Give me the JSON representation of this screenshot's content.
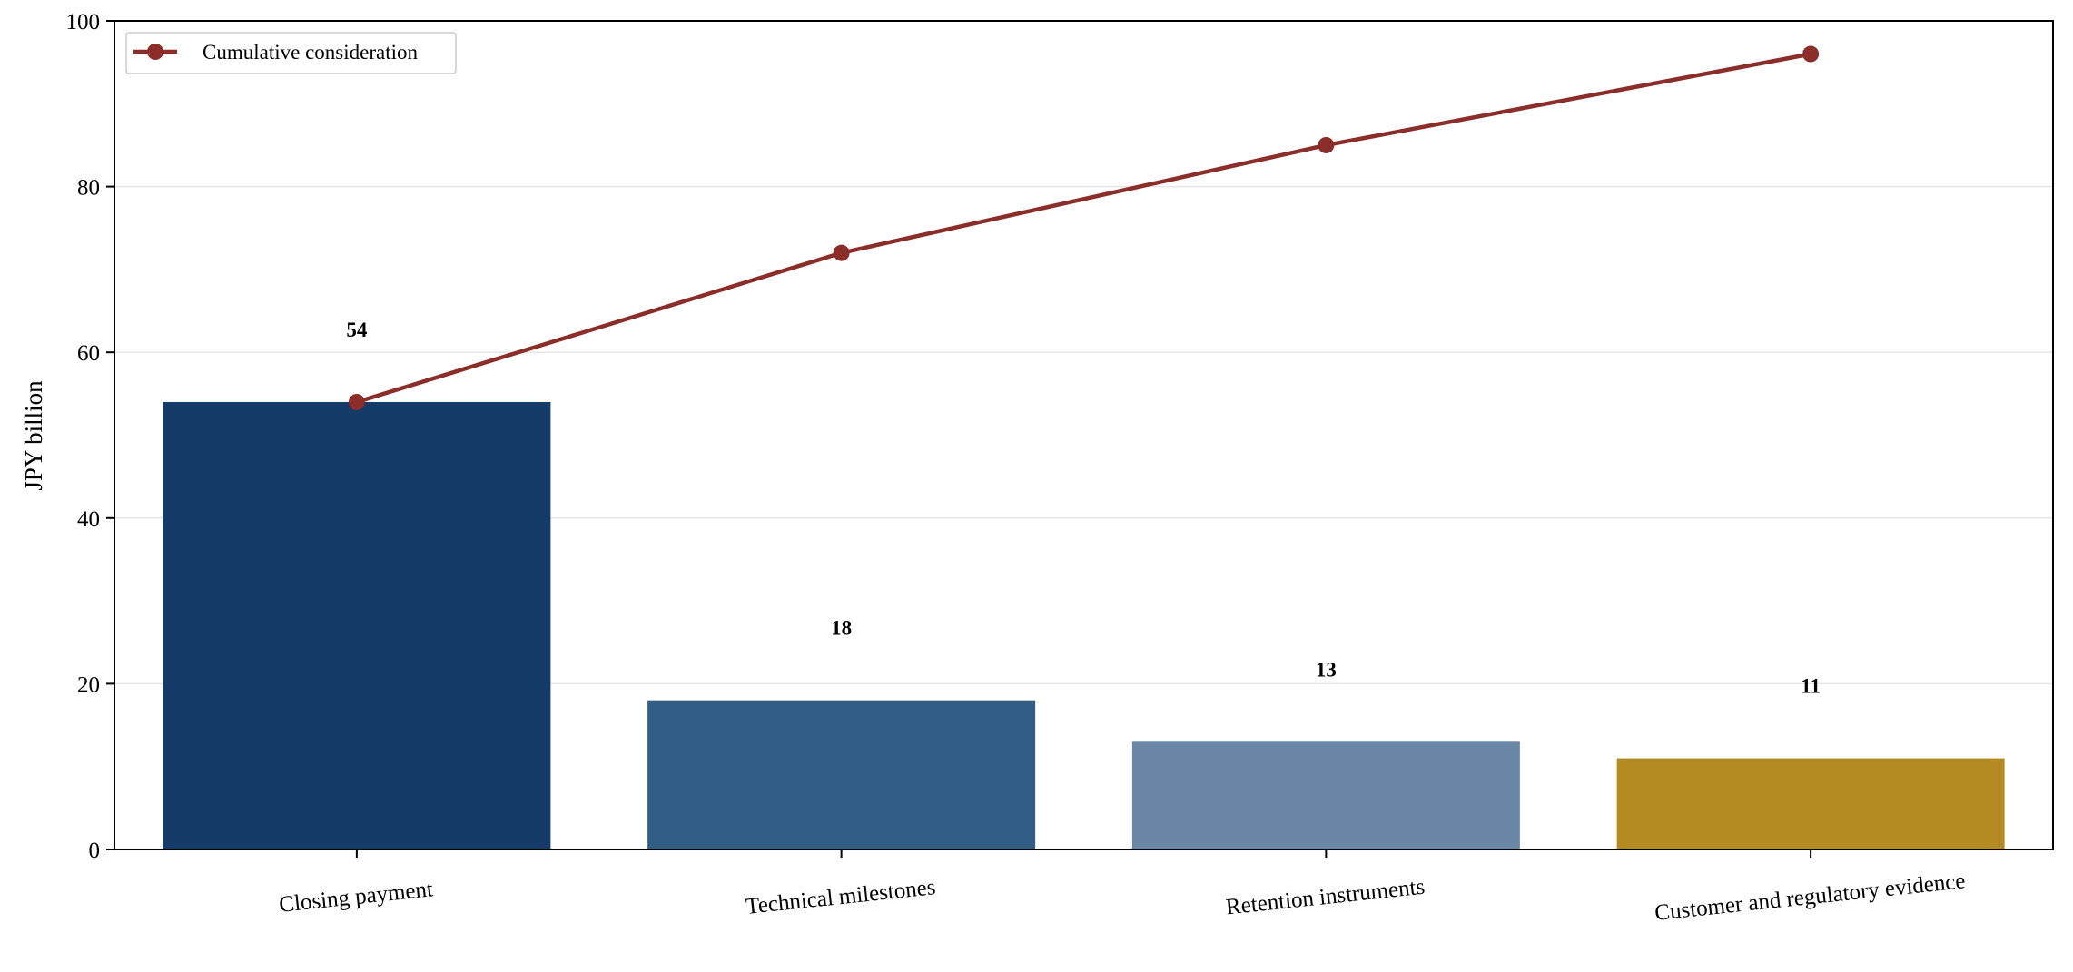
{
  "chart_data": {
    "type": "bar",
    "categories": [
      "Closing payment",
      "Technical milestones",
      "Retention instruments",
      "Customer and regulatory evidence"
    ],
    "values": [
      54,
      18,
      13,
      11
    ],
    "data_labels": [
      "54",
      "18",
      "13",
      "11"
    ],
    "bar_colors": [
      "#153b69",
      "#325d84",
      "#6a88a5",
      "#b38b22"
    ],
    "line_series": {
      "name": "Cumulative consideration",
      "values": [
        54,
        72,
        85,
        96
      ],
      "color": "#8b2e2a"
    },
    "title": "",
    "xlabel": "",
    "ylabel": "JPY billion",
    "ylim": [
      0,
      100
    ],
    "yticks": [
      0,
      20,
      40,
      60,
      80,
      100
    ],
    "ytick_labels": [
      "0",
      "20",
      "40",
      "60",
      "80",
      "100"
    ],
    "grid": "horizontal",
    "legend_placement": "top-left"
  }
}
